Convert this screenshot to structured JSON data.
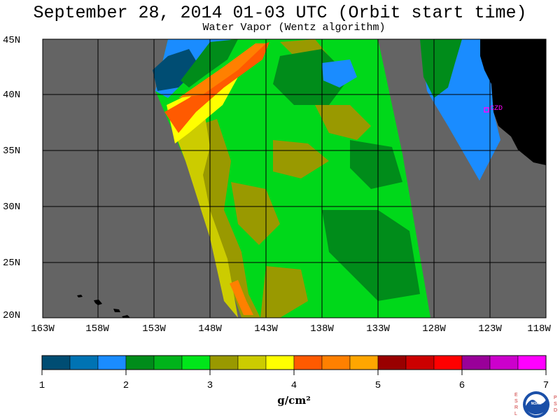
{
  "header": {
    "title": "September 28, 2014  01-03 UTC  (Orbit start time)",
    "subtitle": "Water Vapor (Wentz algorithm)"
  },
  "map": {
    "lat_labels": [
      "45N",
      "40N",
      "35N",
      "30N",
      "25N",
      "20N"
    ],
    "lon_labels": [
      "163W",
      "158W",
      "153W",
      "148W",
      "143W",
      "138W",
      "133W",
      "128W",
      "123W",
      "118W"
    ],
    "station_label": "CZD",
    "colors": {
      "no_data": "#646464",
      "land": "#000000",
      "grid": "#000000",
      "station": "#ff00ff"
    }
  },
  "colorbar": {
    "ticks": [
      "1",
      "2",
      "3",
      "4",
      "5",
      "6",
      "7"
    ],
    "units": "g/cm²",
    "colors": [
      "#004d73",
      "#0073b3",
      "#1a8cff",
      "#008c1a",
      "#00b31a",
      "#00e61a",
      "#999900",
      "#cccc00",
      "#ffff00",
      "#ff5a00",
      "#ff8000",
      "#ffa600",
      "#990000",
      "#cc0000",
      "#ff0000",
      "#990099",
      "#cc00cc",
      "#ff00ff"
    ]
  },
  "logo": {
    "left_letters": "ESRL",
    "right_letters": "PSD",
    "name": "NOAA"
  }
}
